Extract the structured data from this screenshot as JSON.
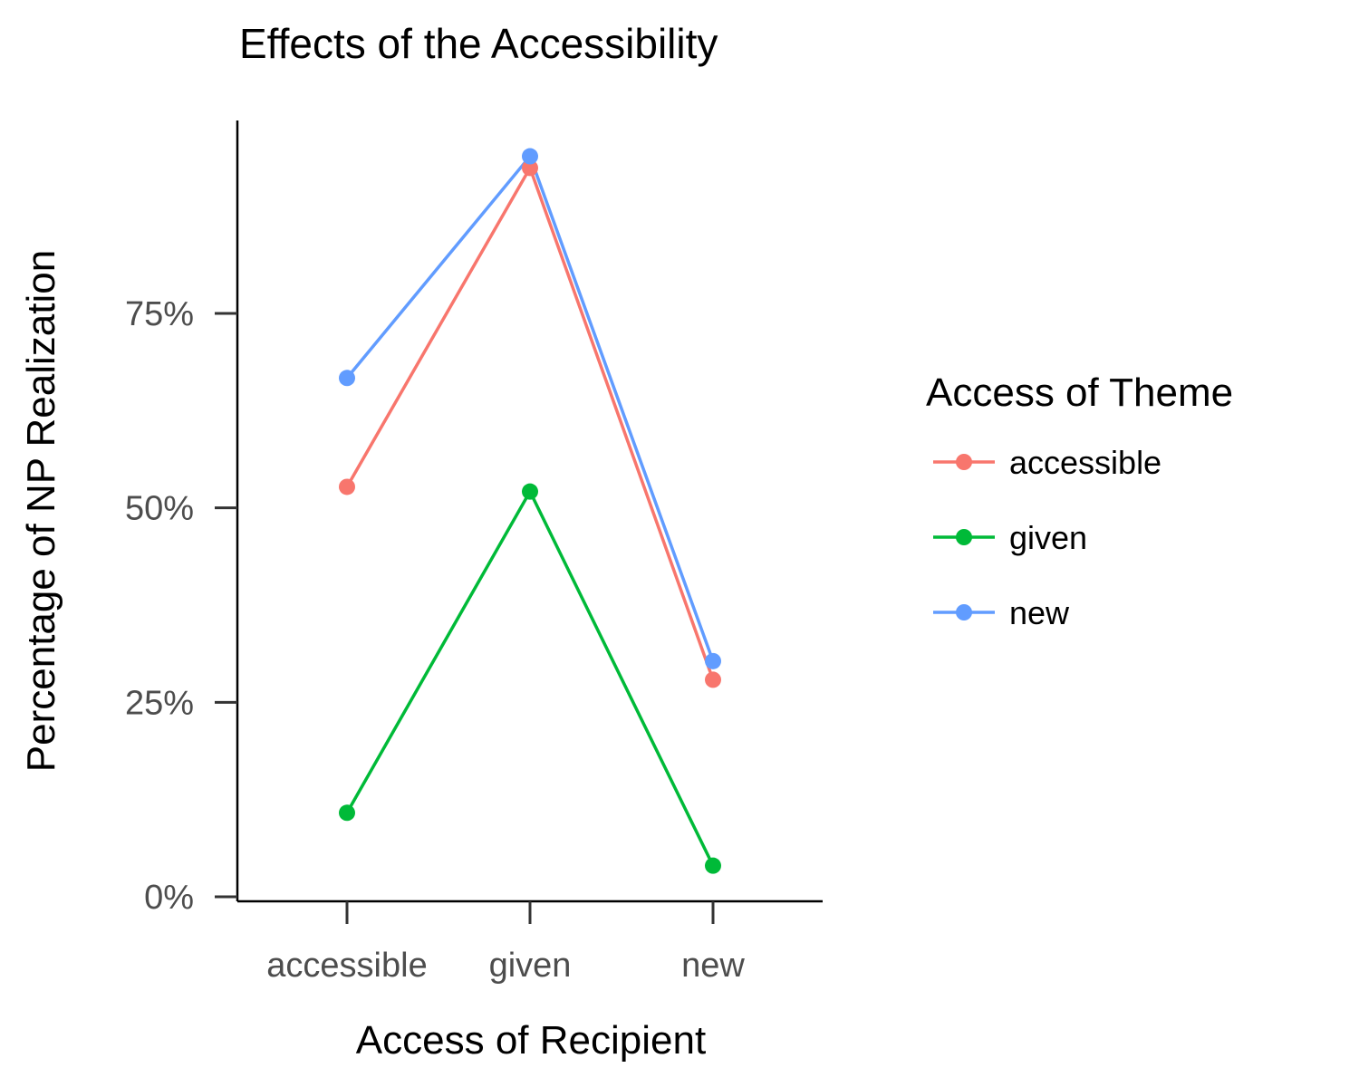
{
  "chart_data": {
    "type": "line",
    "title": "Effects of the Accessibility",
    "xlabel": "Access of Recipient",
    "ylabel": "Percentage of NP Realization",
    "categories": [
      "accessible",
      "given",
      "new"
    ],
    "y_ticks": [
      0,
      0.25,
      0.5,
      0.75
    ],
    "y_tick_labels": [
      "0%",
      "25%",
      "50%",
      "75%"
    ],
    "ylim": [
      -0.005,
      0.955
    ],
    "grid": false,
    "legend": {
      "title": "Access of Theme",
      "position": "right"
    },
    "series": [
      {
        "name": "accessible",
        "color": "#F8766D",
        "values": [
          0.527,
          0.937,
          0.279
        ]
      },
      {
        "name": "given",
        "color": "#00BA38",
        "values": [
          0.108,
          0.521,
          0.04
        ]
      },
      {
        "name": "new",
        "color": "#619CFF",
        "values": [
          0.667,
          0.952,
          0.303
        ]
      }
    ]
  }
}
